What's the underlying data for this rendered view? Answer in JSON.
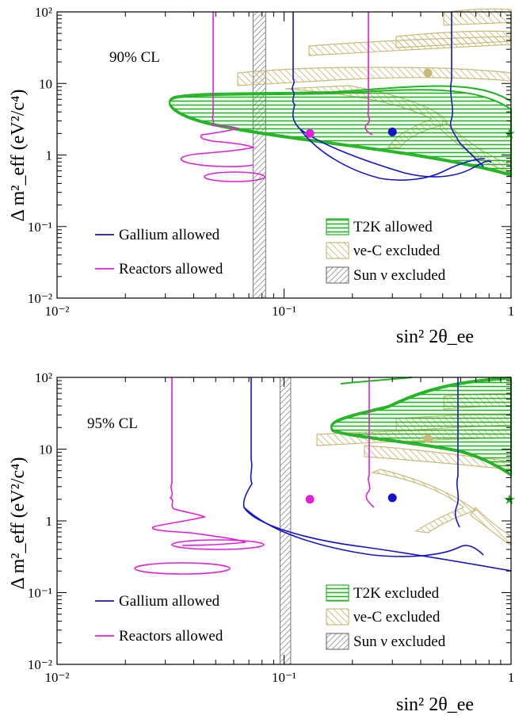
{
  "chart_data": [
    {
      "type": "line",
      "panel": "top",
      "annotation": "90% CL",
      "xlabel": "sin² 2θ_ee",
      "ylabel": "Δ m²_eff (eV²/c⁴)",
      "x_scale": "log",
      "y_scale": "log",
      "xlim": [
        0.01,
        1
      ],
      "ylim": [
        0.01,
        100
      ],
      "grid": false,
      "x_ticks": [
        "10⁻²",
        "10⁻¹",
        "1"
      ],
      "y_ticks": [
        "10⁻²",
        "10⁻¹",
        "1",
        "10",
        "10²"
      ],
      "legend_left": [
        {
          "label": "Gallium allowed",
          "color": "#1515c8"
        },
        {
          "label": "Reactors allowed",
          "color": "#e020d8"
        }
      ],
      "legend_right": [
        {
          "label": "T2K allowed",
          "color": "#22b422",
          "style": "horizontal-hatch"
        },
        {
          "label": "νe-C excluded",
          "color": "#c8bb7a",
          "style": "diagonal-hatch"
        },
        {
          "label": "Sun ν excluded",
          "color": "#808080",
          "style": "diagonal-hatch"
        }
      ],
      "sun_band": [
        0.073,
        0.083
      ],
      "best_fit_points": [
        {
          "series": "Reactors",
          "x": 0.13,
          "y": 2.0,
          "color": "#e020d8",
          "marker": "dot"
        },
        {
          "series": "Gallium",
          "x": 0.3,
          "y": 2.1,
          "color": "#1515c8",
          "marker": "dot"
        },
        {
          "series": "νe-C",
          "x": 0.43,
          "y": 14,
          "color": "#c8bb7a",
          "marker": "dot"
        },
        {
          "series": "T2K",
          "x": 1.0,
          "y": 2.0,
          "color": "#22b422",
          "marker": "star"
        }
      ]
    },
    {
      "type": "line",
      "panel": "bottom",
      "annotation": "95% CL",
      "xlabel": "sin² 2θ_ee",
      "ylabel": "Δ m²_eff (eV²/c⁴)",
      "x_scale": "log",
      "y_scale": "log",
      "xlim": [
        0.01,
        1
      ],
      "ylim": [
        0.01,
        100
      ],
      "grid": false,
      "x_ticks": [
        "10⁻²",
        "10⁻¹",
        "1"
      ],
      "y_ticks": [
        "10⁻²",
        "10⁻¹",
        "1",
        "10",
        "10²"
      ],
      "legend_left": [
        {
          "label": "Gallium allowed",
          "color": "#1515c8"
        },
        {
          "label": "Reactors allowed",
          "color": "#e020d8"
        }
      ],
      "legend_right": [
        {
          "label": "T2K excluded",
          "color": "#22b422",
          "style": "horizontal-hatch"
        },
        {
          "label": "νe-C excluded",
          "color": "#c8bb7a",
          "style": "diagonal-hatch"
        },
        {
          "label": "Sun ν excluded",
          "color": "#808080",
          "style": "diagonal-hatch"
        }
      ],
      "sun_band": [
        0.096,
        0.107
      ],
      "best_fit_points": [
        {
          "series": "Reactors",
          "x": 0.13,
          "y": 2.0,
          "color": "#e020d8",
          "marker": "dot"
        },
        {
          "series": "Gallium",
          "x": 0.3,
          "y": 2.1,
          "color": "#1515c8",
          "marker": "dot"
        },
        {
          "series": "νe-C",
          "x": 0.43,
          "y": 14,
          "color": "#c8bb7a",
          "marker": "dot"
        },
        {
          "series": "T2K",
          "x": 1.0,
          "y": 2.0,
          "color": "#22b422",
          "marker": "star"
        }
      ]
    }
  ]
}
